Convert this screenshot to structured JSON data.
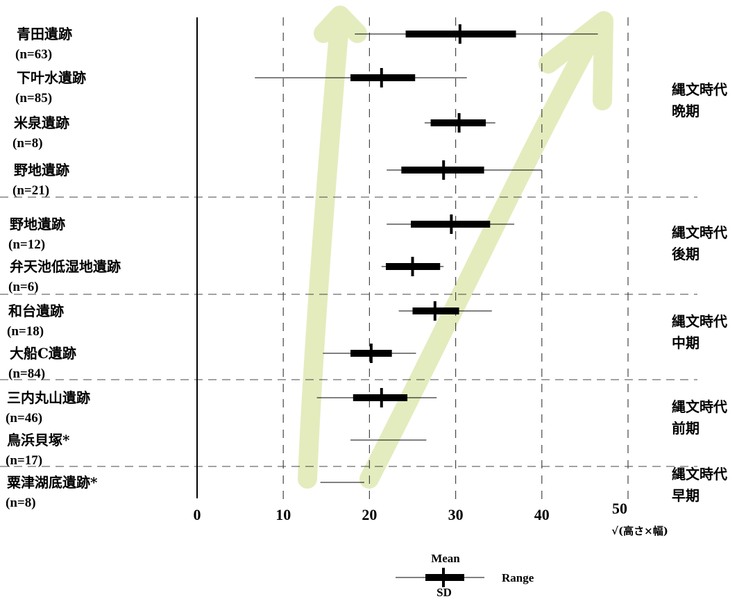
{
  "chart_data": {
    "type": "range-sd-plot",
    "xlabel": "√(高さ×幅)",
    "xlim": [
      0,
      50
    ],
    "xticks": [
      0,
      10,
      20,
      30,
      40,
      50
    ],
    "reference_lines": [
      10,
      20,
      30,
      40,
      50
    ],
    "series": [
      {
        "site": "青田遺跡",
        "n": "(n=63)",
        "min": 18.3,
        "max": 46.5,
        "mean": 30.5,
        "sd_low": 24.2,
        "sd_high": 37.0
      },
      {
        "site": "下叶水遺跡",
        "n": "(n=85)",
        "min": 6.7,
        "max": 31.3,
        "mean": 21.4,
        "sd_low": 17.8,
        "sd_high": 25.3
      },
      {
        "site": "米泉遺跡",
        "n": "(n=8)",
        "min": 26.4,
        "max": 34.6,
        "mean": 30.4,
        "sd_low": 27.1,
        "sd_high": 33.5
      },
      {
        "site": "野地遺跡",
        "n": "(n=21)",
        "min": 22.0,
        "max": 40.0,
        "mean": 28.6,
        "sd_low": 23.7,
        "sd_high": 33.3
      },
      {
        "site": "野地遺跡",
        "n": "(n=12)",
        "min": 22.0,
        "max": 36.8,
        "mean": 29.5,
        "sd_low": 24.8,
        "sd_high": 34.0
      },
      {
        "site": "弁天池低湿地遺跡",
        "n": "(n=6)",
        "min": 21.4,
        "max": 28.6,
        "mean": 25.0,
        "sd_low": 21.9,
        "sd_high": 28.2
      },
      {
        "site": "和台遺跡",
        "n": "(n=18)",
        "min": 23.4,
        "max": 34.2,
        "mean": 27.6,
        "sd_low": 25.0,
        "sd_high": 30.4
      },
      {
        "site": "大船C遺跡",
        "n": "(n=84)",
        "min": 14.6,
        "max": 25.4,
        "mean": 20.2,
        "sd_low": 17.8,
        "sd_high": 22.6
      },
      {
        "site": "三内丸山遺跡",
        "n": "(n=46)",
        "min": 13.9,
        "max": 27.8,
        "mean": 21.4,
        "sd_low": 18.1,
        "sd_high": 24.4
      },
      {
        "site": "鳥浜貝塚*",
        "n": "(n=17)",
        "min": 17.8,
        "max": 26.6
      },
      {
        "site": "粟津湖底遺跡*",
        "n": "(n=8)",
        "min": 14.3,
        "max": 19.4
      }
    ],
    "periods": [
      {
        "label1": "縄文時代",
        "label2": "晩期"
      },
      {
        "label1": "縄文時代",
        "label2": "後期"
      },
      {
        "label1": "縄文時代",
        "label2": "中期"
      },
      {
        "label1": "縄文時代",
        "label2": "前期"
      },
      {
        "label1": "縄文時代",
        "label2": "早期"
      }
    ],
    "legend": {
      "mean": "Mean",
      "range": "Range",
      "sd": "SD"
    },
    "grid": false
  }
}
